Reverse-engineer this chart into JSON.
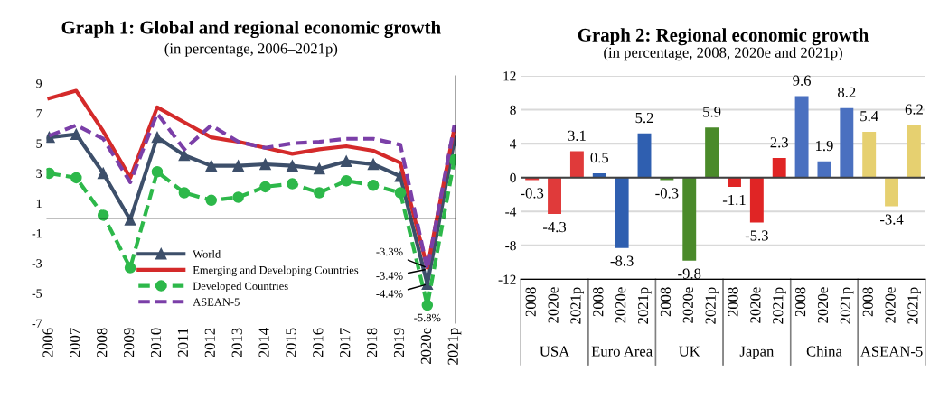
{
  "chart_data": [
    {
      "type": "line",
      "title": "Graph 1: Global and regional economic growth",
      "subtitle": "(in percentage, 2006–2021p)",
      "categories": [
        "2006",
        "2007",
        "2008",
        "2009",
        "2010",
        "2011",
        "2012",
        "2013",
        "2014",
        "2015",
        "2016",
        "2017",
        "2018",
        "2019",
        "2020e",
        "2021p"
      ],
      "series": [
        {
          "name": "World",
          "color": "#3d4f6a",
          "marker": "triangle",
          "line_style": "solid",
          "values": [
            5.4,
            5.6,
            3.0,
            -0.1,
            5.4,
            4.2,
            3.5,
            3.5,
            3.6,
            3.5,
            3.3,
            3.8,
            3.6,
            2.8,
            -4.4,
            5.2
          ]
        },
        {
          "name": "Emerging and Developing Countries",
          "color": "#d42a2a",
          "marker": "none",
          "line_style": "solid",
          "values": [
            8.0,
            8.5,
            5.8,
            2.7,
            7.4,
            6.4,
            5.4,
            5.1,
            4.7,
            4.3,
            4.6,
            4.8,
            4.5,
            3.7,
            -3.3,
            6.0
          ]
        },
        {
          "name": "Developed Countries",
          "color": "#2db84a",
          "marker": "circle",
          "line_style": "dashed",
          "values": [
            3.0,
            2.7,
            0.2,
            -3.3,
            3.1,
            1.7,
            1.2,
            1.4,
            2.1,
            2.3,
            1.7,
            2.5,
            2.2,
            1.7,
            -5.8,
            3.9
          ]
        },
        {
          "name": "ASEAN-5",
          "color": "#7b3fa8",
          "marker": "none",
          "line_style": "dashed",
          "values": [
            5.5,
            6.2,
            5.3,
            2.4,
            7.0,
            4.6,
            6.2,
            5.1,
            4.7,
            5.0,
            5.1,
            5.3,
            5.3,
            4.9,
            -3.4,
            6.2
          ]
        }
      ],
      "ylim": [
        -7,
        9.5
      ],
      "yticks": [
        -7,
        -5,
        -3,
        -1,
        1,
        3,
        5,
        7,
        9
      ],
      "grid": false,
      "legend": "bottom",
      "ref_lines": [
        {
          "axis": "y",
          "value": 0,
          "color": "#000000"
        }
      ],
      "annotations": [
        {
          "text": "-3.3%",
          "x": "2020e",
          "y": -3.3
        },
        {
          "text": "-3.4%",
          "x": "2020e",
          "y": -3.4
        },
        {
          "text": "-4.4%",
          "x": "2020e",
          "y": -4.4
        },
        {
          "text": "-5.8%",
          "x": "2020e",
          "y": -5.8
        }
      ]
    },
    {
      "type": "bar",
      "title": "Graph 2: Regional economic growth",
      "subtitle": "(in percentage, 2008, 2020e and 2021p)",
      "categories": [
        "2008",
        "2020e",
        "2021p",
        "2008",
        "2020e",
        "2021p",
        "2008",
        "2020e",
        "2021p",
        "2008",
        "2020e",
        "2021p",
        "2008",
        "2020e",
        "2021p",
        "2008",
        "2020e",
        "2021p"
      ],
      "values": [
        -0.3,
        -4.3,
        3.1,
        0.5,
        -8.3,
        5.2,
        -0.3,
        -9.8,
        5.9,
        -1.1,
        -5.3,
        2.3,
        9.6,
        1.9,
        8.2,
        5.4,
        -3.4,
        6.2
      ],
      "colors": [
        "#e03a3a",
        "#e03a3a",
        "#e03a3a",
        "#2f5fb0",
        "#2f5fb0",
        "#2f5fb0",
        "#4a8a2a",
        "#4a8a2a",
        "#4a8a2a",
        "#e02525",
        "#e02525",
        "#e02525",
        "#4a70c0",
        "#4a70c0",
        "#4a70c0",
        "#e6d070",
        "#e6d070",
        "#e6d070"
      ],
      "data_labels": true,
      "ylim": [
        -12,
        12
      ],
      "yticks": [
        -12,
        -8,
        -4,
        0,
        4,
        8,
        12
      ],
      "grid": "y",
      "annotations": [
        "USA",
        "Euro Area",
        "UK",
        "Japan",
        "China",
        "ASEAN-5"
      ]
    }
  ]
}
